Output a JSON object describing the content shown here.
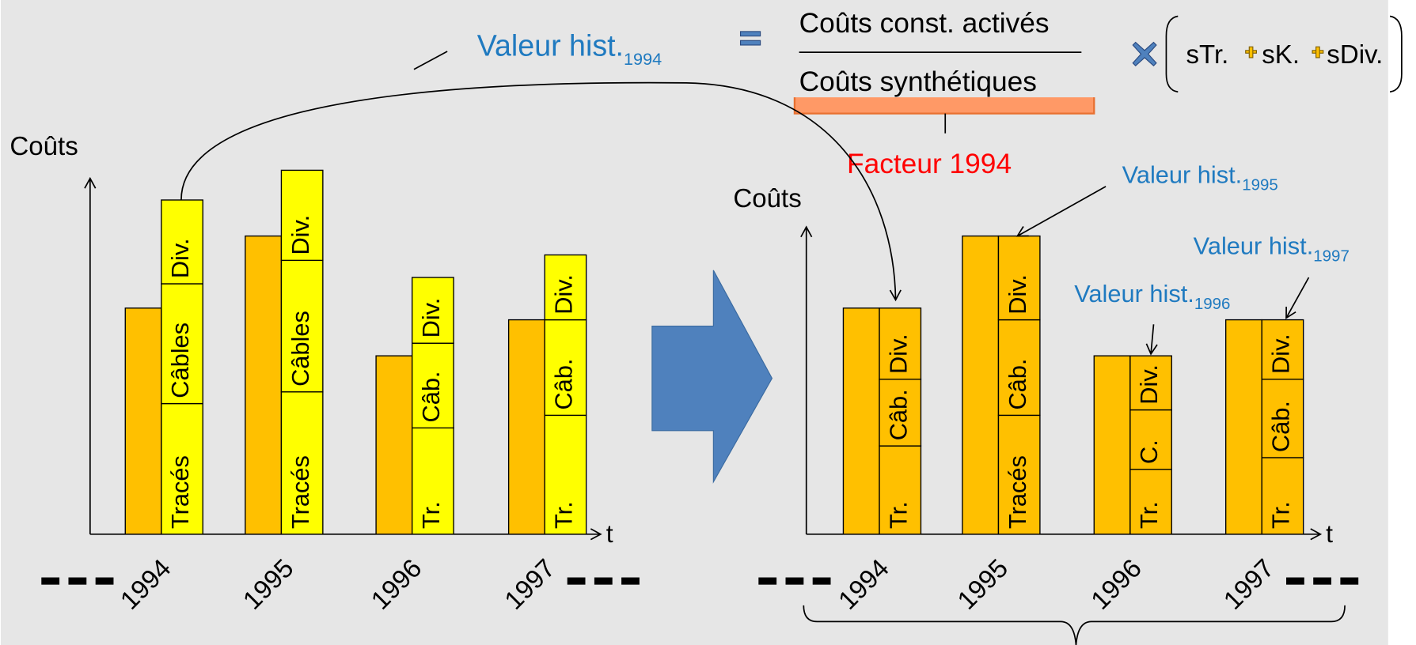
{
  "formula": {
    "lhs": {
      "label": "Valeur hist.",
      "sub": "1994"
    },
    "numerator": "Coûts  const. activés",
    "denominator": "Coûts synthétiques",
    "terms": [
      "sTr.",
      "sK.",
      "sDiv."
    ],
    "brace_label": "Facteur 1994"
  },
  "left_chart": {
    "y_label": "Coûts",
    "x_label": "t",
    "years": [
      "1994",
      "1995",
      "1996",
      "1997"
    ],
    "segments": [
      [
        "Tracés",
        "Câbles",
        "Div."
      ],
      [
        "Tracés",
        "Câbles",
        "Div."
      ],
      [
        "Tr.",
        "Câb.",
        "Div."
      ],
      [
        "Tr.",
        "Câb.",
        "Div."
      ]
    ]
  },
  "right_chart": {
    "y_label": "Coûts",
    "x_label": "t",
    "years": [
      "1994",
      "1995",
      "1996",
      "1997"
    ],
    "segments": [
      [
        "Tr.",
        "Câb.",
        "Div."
      ],
      [
        "Tracés",
        "Câb.",
        "Div."
      ],
      [
        "Tr.",
        "C.",
        "Div."
      ],
      [
        "Tr.",
        "Câb.",
        "Div."
      ]
    ],
    "annotations": [
      {
        "label": "Valeur hist.",
        "sub": "1995"
      },
      {
        "label": "Valeur hist.",
        "sub": "1996"
      },
      {
        "label": "Valeur hist.",
        "sub": "1997"
      }
    ]
  }
}
